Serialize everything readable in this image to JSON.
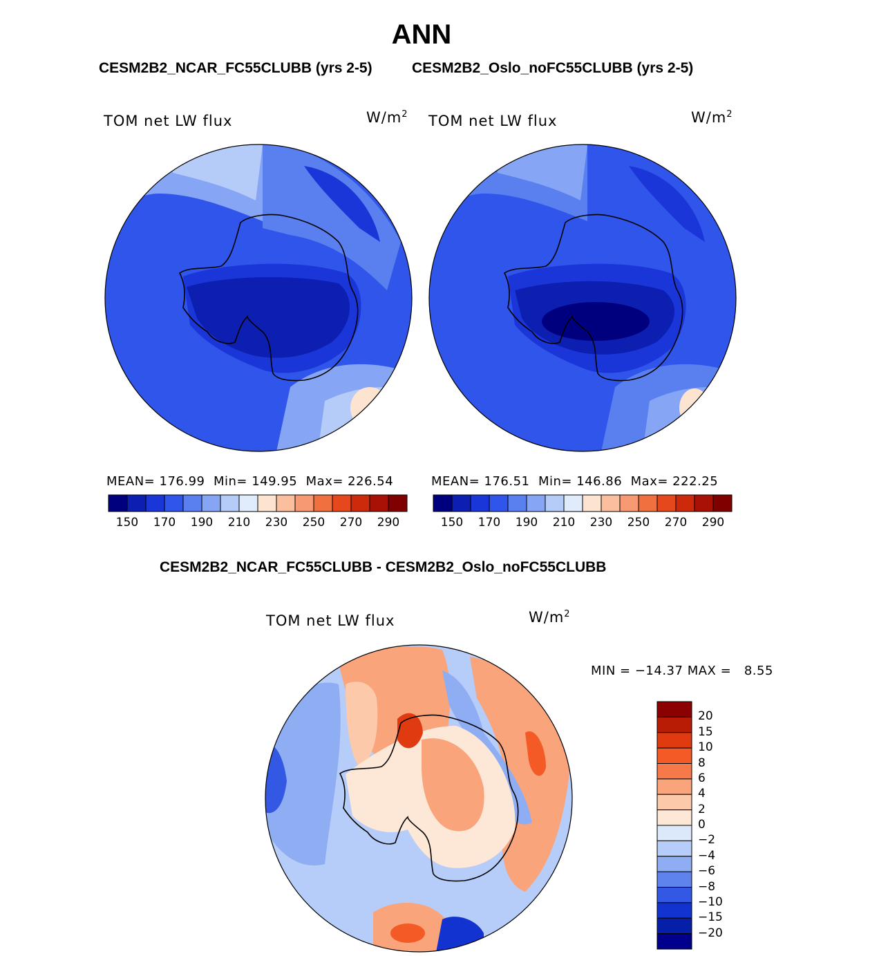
{
  "chart_data": [
    {
      "type": "heatmap",
      "projection": "south-polar-stereographic",
      "figure_title": "ANN",
      "case_title": "CESM2B2_NCAR_FC55CLUBB (yrs 2-5)",
      "field_label": "TOM net LW flux",
      "units_base": "W/m",
      "units_exp": "2",
      "stats": {
        "mean_label": "MEAN=",
        "mean": "176.99",
        "min_label": "Min=",
        "min": "149.95",
        "max_label": "Max=",
        "max": "226.54"
      },
      "colorbar": {
        "levels": [
          150,
          160,
          170,
          180,
          190,
          200,
          210,
          220,
          230,
          240,
          250,
          260,
          270,
          280,
          290
        ],
        "tick_labels": [
          "150",
          "170",
          "190",
          "210",
          "230",
          "250",
          "270",
          "290"
        ],
        "colors": [
          "#00007f",
          "#0c1fb0",
          "#1a36d8",
          "#2f55ea",
          "#5a80f0",
          "#86a6f5",
          "#b5ccf8",
          "#e0ecfc",
          "#fde4d1",
          "#fbbfa0",
          "#f79a73",
          "#f0703f",
          "#e4481c",
          "#cc2a0b",
          "#a81205",
          "#800000"
        ]
      }
    },
    {
      "type": "heatmap",
      "projection": "south-polar-stereographic",
      "case_title": "CESM2B2_Oslo_noFC55CLUBB (yrs 2-5)",
      "field_label": "TOM net LW flux",
      "units_base": "W/m",
      "units_exp": "2",
      "stats": {
        "mean_label": "MEAN=",
        "mean": "176.51",
        "min_label": "Min=",
        "min": "146.86",
        "max_label": "Max=",
        "max": "222.25"
      },
      "colorbar": {
        "levels": [
          150,
          160,
          170,
          180,
          190,
          200,
          210,
          220,
          230,
          240,
          250,
          260,
          270,
          280,
          290
        ],
        "tick_labels": [
          "150",
          "170",
          "190",
          "210",
          "230",
          "250",
          "270",
          "290"
        ]
      }
    },
    {
      "type": "heatmap",
      "projection": "south-polar-stereographic",
      "diff_title": "CESM2B2_NCAR_FC55CLUBB - CESM2B2_Oslo_noFC55CLUBB",
      "field_label": "TOM net LW flux",
      "units_base": "W/m",
      "units_exp": "2",
      "stats": {
        "min_label": "MIN =",
        "min": "−14.37",
        "max_label": "MAX =",
        "max": "8.55"
      },
      "colorbar": {
        "tick_labels": [
          "20",
          "15",
          "10",
          "8",
          "6",
          "4",
          "2",
          "0",
          "−2",
          "−4",
          "−6",
          "−8",
          "−10",
          "−15",
          "−20"
        ],
        "colors": [
          "#8b0000",
          "#b81c05",
          "#e03a10",
          "#f35a26",
          "#f7794a",
          "#faa47c",
          "#fcc9aa",
          "#fde8d8",
          "#dbe9fb",
          "#b5cdf8",
          "#8eadf3",
          "#5f83ec",
          "#3258e4",
          "#1233cf",
          "#061fa8",
          "#00008c"
        ]
      }
    }
  ]
}
